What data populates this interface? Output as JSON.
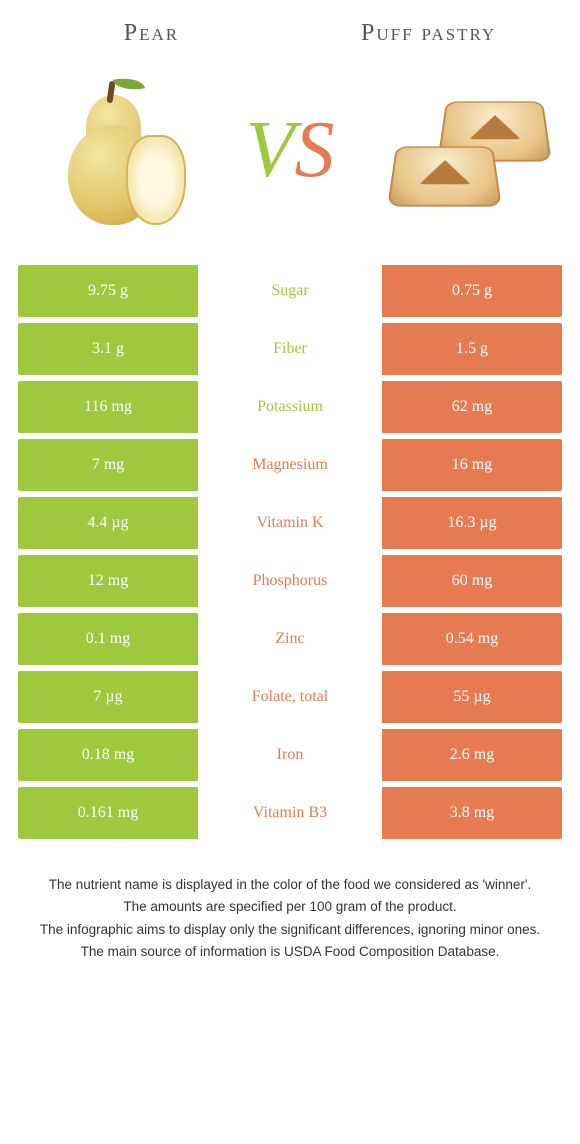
{
  "foods": {
    "left": {
      "title": "Pear"
    },
    "right": {
      "title": "Puff pastry"
    }
  },
  "vs": {
    "v": "V",
    "s": "S"
  },
  "colors": {
    "left_bar": "#9ec83e",
    "right_bar": "#e67b52",
    "left_text": "#9ec83e",
    "right_text": "#e67b52"
  },
  "rows": [
    {
      "label": "Sugar",
      "left": "9.75 g",
      "right": "0.75 g",
      "winner": "left"
    },
    {
      "label": "Fiber",
      "left": "3.1 g",
      "right": "1.5 g",
      "winner": "left"
    },
    {
      "label": "Potassium",
      "left": "116 mg",
      "right": "62 mg",
      "winner": "left"
    },
    {
      "label": "Magnesium",
      "left": "7 mg",
      "right": "16 mg",
      "winner": "right"
    },
    {
      "label": "Vitamin K",
      "left": "4.4 µg",
      "right": "16.3 µg",
      "winner": "right"
    },
    {
      "label": "Phosphorus",
      "left": "12 mg",
      "right": "60 mg",
      "winner": "right"
    },
    {
      "label": "Zinc",
      "left": "0.1 mg",
      "right": "0.54 mg",
      "winner": "right"
    },
    {
      "label": "Folate, total",
      "left": "7 µg",
      "right": "55 µg",
      "winner": "right"
    },
    {
      "label": "Iron",
      "left": "0.18 mg",
      "right": "2.6 mg",
      "winner": "right"
    },
    {
      "label": "Vitamin B3",
      "left": "0.161 mg",
      "right": "3.8 mg",
      "winner": "right"
    }
  ],
  "footnotes": [
    "The nutrient name is displayed in the color of the food we considered as 'winner'.",
    "The amounts are specified per 100 gram of the product.",
    "The infographic aims to display only the significant differences, ignoring minor ones.",
    "The main source of information is USDA Food Composition Database."
  ]
}
